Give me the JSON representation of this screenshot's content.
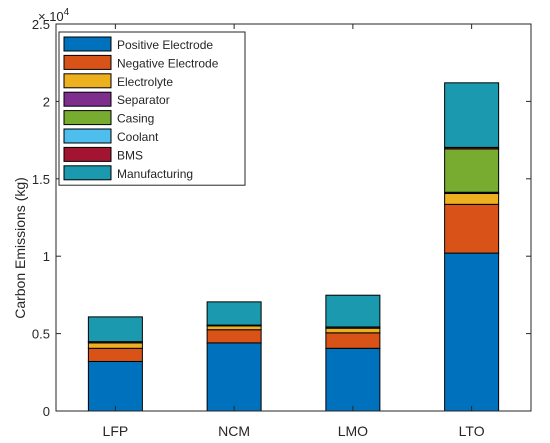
{
  "chart_data": {
    "type": "bar",
    "stacked": true,
    "title": "",
    "xlabel": "",
    "ylabel": "Carbon Emissions (kg)",
    "y_exponent_label": "× 10",
    "y_exponent_power": "4",
    "y_tick_labels": [
      "0",
      "0.5",
      "1",
      "1.5",
      "2",
      "2.5"
    ],
    "y_tick_values": [
      0,
      5000,
      10000,
      15000,
      20000,
      25000
    ],
    "ylim": [
      0,
      25000
    ],
    "categories": [
      "LFP",
      "NCM",
      "LMO",
      "LTO"
    ],
    "legend_position": "top-left",
    "grid": false,
    "series": [
      {
        "name": "Positive Electrode",
        "color": "#0072BD",
        "values": [
          3200,
          4400,
          4050,
          10200
        ]
      },
      {
        "name": "Negative Electrode",
        "color": "#D95319",
        "values": [
          850,
          850,
          1000,
          3150
        ]
      },
      {
        "name": "Electrolyte",
        "color": "#EDB120",
        "values": [
          350,
          250,
          300,
          700
        ]
      },
      {
        "name": "Separator",
        "color": "#7E2F8E",
        "values": [
          80,
          50,
          80,
          80
        ]
      },
      {
        "name": "Casing",
        "color": "#77AC30",
        "values": [
          0,
          0,
          0,
          2800
        ]
      },
      {
        "name": "Coolant",
        "color": "#4DBEEE",
        "values": [
          0,
          0,
          0,
          0
        ]
      },
      {
        "name": "BMS",
        "color": "#A2142F",
        "values": [
          0,
          0,
          0,
          100
        ]
      },
      {
        "name": "Manufacturing",
        "color": "#1B9AAF",
        "values": [
          1600,
          1500,
          2050,
          4170
        ]
      }
    ]
  }
}
